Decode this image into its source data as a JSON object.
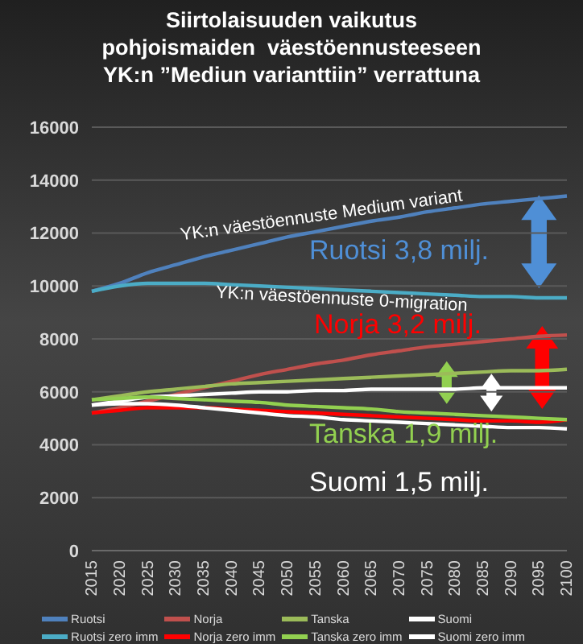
{
  "chart_data": {
    "type": "line",
    "title": "Siirtolaisuuden vaikutus\npohjoismaiden  väestöennusteeseen\nYK:n ”Mediun varianttiin” verrattuna",
    "categories": [
      "2015",
      "2020",
      "2025",
      "2030",
      "2035",
      "2040",
      "2045",
      "2050",
      "2055",
      "2060",
      "2065",
      "2070",
      "2075",
      "2080",
      "2085",
      "2090",
      "2095",
      "2100"
    ],
    "series": [
      {
        "name": "Ruotsi",
        "color": "#4f81bd",
        "values": [
          9800,
          10100,
          10500,
          10800,
          11100,
          11350,
          11600,
          11850,
          12050,
          12250,
          12450,
          12600,
          12800,
          12950,
          13100,
          13200,
          13300,
          13400
        ]
      },
      {
        "name": "Norja",
        "color": "#c0504d",
        "values": [
          5200,
          5400,
          5650,
          5900,
          6150,
          6400,
          6650,
          6850,
          7050,
          7200,
          7400,
          7550,
          7700,
          7800,
          7900,
          8000,
          8100,
          8150
        ]
      },
      {
        "name": "Tanska",
        "color": "#9bbb59",
        "values": [
          5700,
          5850,
          6000,
          6100,
          6200,
          6300,
          6350,
          6400,
          6450,
          6500,
          6550,
          6600,
          6650,
          6700,
          6750,
          6800,
          6800,
          6850
        ]
      },
      {
        "name": "Suomi",
        "color": "#ffffff",
        "values": [
          5500,
          5650,
          5800,
          5850,
          5900,
          5950,
          6000,
          6000,
          6050,
          6050,
          6100,
          6100,
          6100,
          6100,
          6150,
          6150,
          6150,
          6150
        ]
      },
      {
        "name": "Ruotsi zero imm",
        "color": "#4bacc6",
        "values": [
          9800,
          10000,
          10100,
          10100,
          10100,
          10050,
          10000,
          9950,
          9900,
          9850,
          9800,
          9750,
          9700,
          9650,
          9600,
          9600,
          9550,
          9550
        ]
      },
      {
        "name": "Norja zero imm",
        "color": "#ff0000",
        "values": [
          5200,
          5300,
          5400,
          5400,
          5400,
          5350,
          5300,
          5250,
          5200,
          5150,
          5100,
          5050,
          5000,
          4950,
          4900,
          4900,
          4850,
          4950
        ]
      },
      {
        "name": "Tanska zero imm",
        "color": "#92d050",
        "values": [
          5700,
          5750,
          5800,
          5750,
          5700,
          5650,
          5600,
          5500,
          5450,
          5400,
          5350,
          5250,
          5200,
          5150,
          5100,
          5050,
          5000,
          4950
        ]
      },
      {
        "name": "Suomi zero imm",
        "color": "#ffffff",
        "values": [
          5500,
          5550,
          5550,
          5500,
          5400,
          5300,
          5200,
          5100,
          5050,
          4950,
          4900,
          4850,
          4800,
          4750,
          4700,
          4650,
          4650,
          4600
        ]
      }
    ],
    "ylim": [
      0,
      16000
    ],
    "yticks": [
      0,
      2000,
      4000,
      6000,
      8000,
      10000,
      12000,
      14000,
      16000
    ],
    "grid": "y",
    "legend": "bottom",
    "marker": "none",
    "line_style": "solid",
    "annotations": [
      "YK:n väestöennuste Medium variant",
      "YK:n väestöennuste 0-migration",
      "Ruotsi 3,8 milj.",
      "Norja 3,2 milj.",
      "Tanska 1,9 milj.",
      "Suomi 1,5 milj."
    ]
  }
}
